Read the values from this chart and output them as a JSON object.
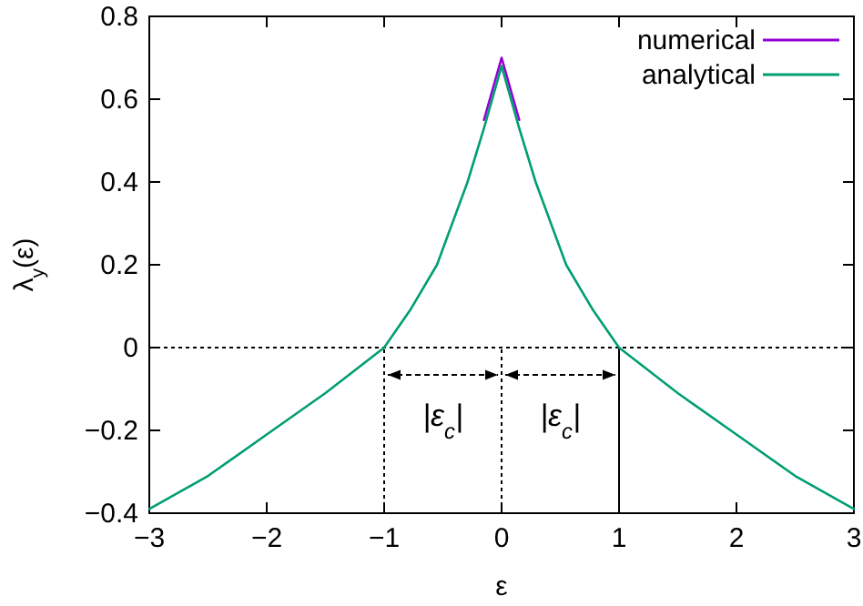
{
  "chart_data": {
    "type": "line",
    "xlabel": "ε",
    "ylabel": "λ$_{y}$(ε)",
    "x": [
      -3,
      -2.5,
      -2,
      -1.5,
      -1,
      -0.78,
      -0.55,
      -0.29,
      -0.15,
      0,
      0.15,
      0.29,
      0.55,
      0.78,
      1,
      1.5,
      2,
      2.5,
      3
    ],
    "series": [
      {
        "name": "numerical",
        "color": "#9400d3",
        "values": [
          null,
          null,
          null,
          null,
          null,
          null,
          null,
          null,
          0.55,
          0.7,
          0.55,
          null,
          null,
          null,
          null,
          null,
          null,
          null,
          null
        ]
      },
      {
        "name": "analytical",
        "color": "#009e73",
        "values": [
          -0.39,
          -0.31,
          -0.21,
          -0.11,
          0,
          0.09,
          0.2,
          0.4,
          0.53,
          0.68,
          0.53,
          0.4,
          0.2,
          0.09,
          0,
          -0.11,
          -0.21,
          -0.31,
          -0.39
        ]
      }
    ],
    "xlim": [
      -3,
      3
    ],
    "ylim": [
      -0.4,
      0.8
    ],
    "xticks": [
      -3,
      -2,
      -1,
      0,
      1,
      2,
      3
    ],
    "yticks": [
      -0.4,
      -0.2,
      0,
      0.2,
      0.4,
      0.6,
      0.8
    ],
    "ref_lines": [
      {
        "axis": "y",
        "value": 0,
        "line_style": "dotted"
      },
      {
        "axis": "x",
        "value": -1,
        "line_style": "dotted"
      },
      {
        "axis": "x",
        "value": 0,
        "line_style": "dotted"
      },
      {
        "axis": "x",
        "value": 1,
        "line_style": "solid"
      }
    ],
    "annotations": [
      "|ε$_{c}$|",
      "|ε$_{c}$|"
    ],
    "legend": "top right",
    "grid": false,
    "line_style": "solid",
    "marker": "none"
  }
}
